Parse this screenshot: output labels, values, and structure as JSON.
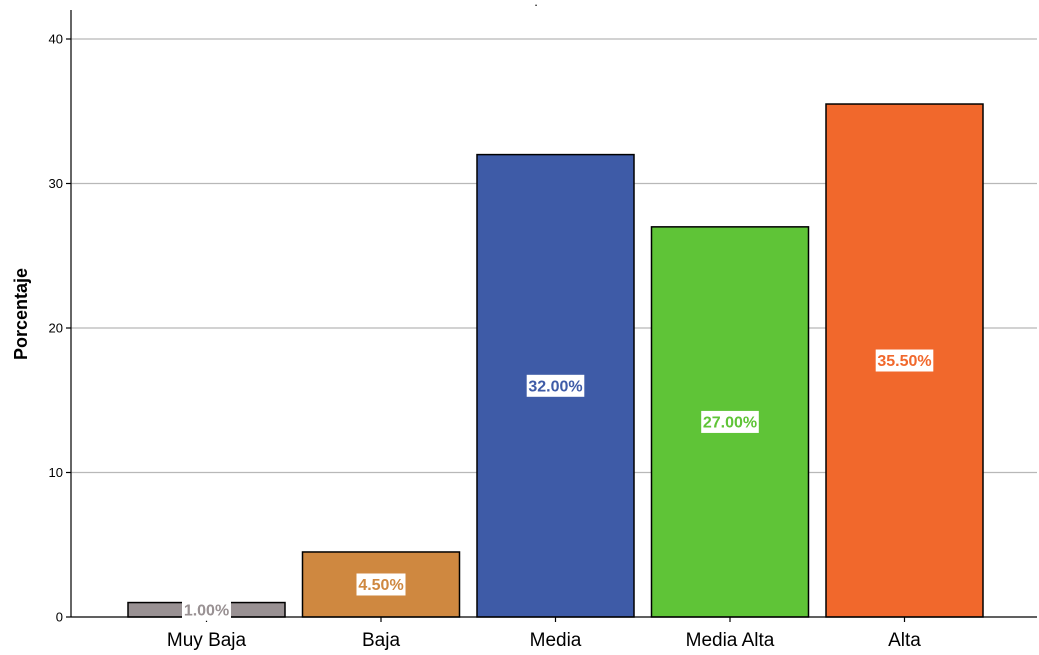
{
  "chart_data": {
    "type": "bar",
    "title": ".",
    "xlabel": "",
    "ylabel": "Porcentaje",
    "ylim": [
      0,
      41.5
    ],
    "yticks": [
      0,
      10,
      20,
      30,
      40
    ],
    "yticks_labels": [
      "0",
      "10",
      "20",
      "30",
      "40"
    ],
    "grid": true,
    "categories": [
      "Muy Baja",
      "Baja",
      "Media",
      "Media Alta",
      "Alta"
    ],
    "values": [
      1.0,
      4.5,
      32.0,
      27.0,
      35.5
    ],
    "data_labels": [
      "1.00%",
      "4.50%",
      "32.00%",
      "27.00%",
      "35.50%"
    ],
    "colors": [
      "#999193",
      "#cf8840",
      "#3e5ba7",
      "#5fc437",
      "#f1682c"
    ]
  }
}
